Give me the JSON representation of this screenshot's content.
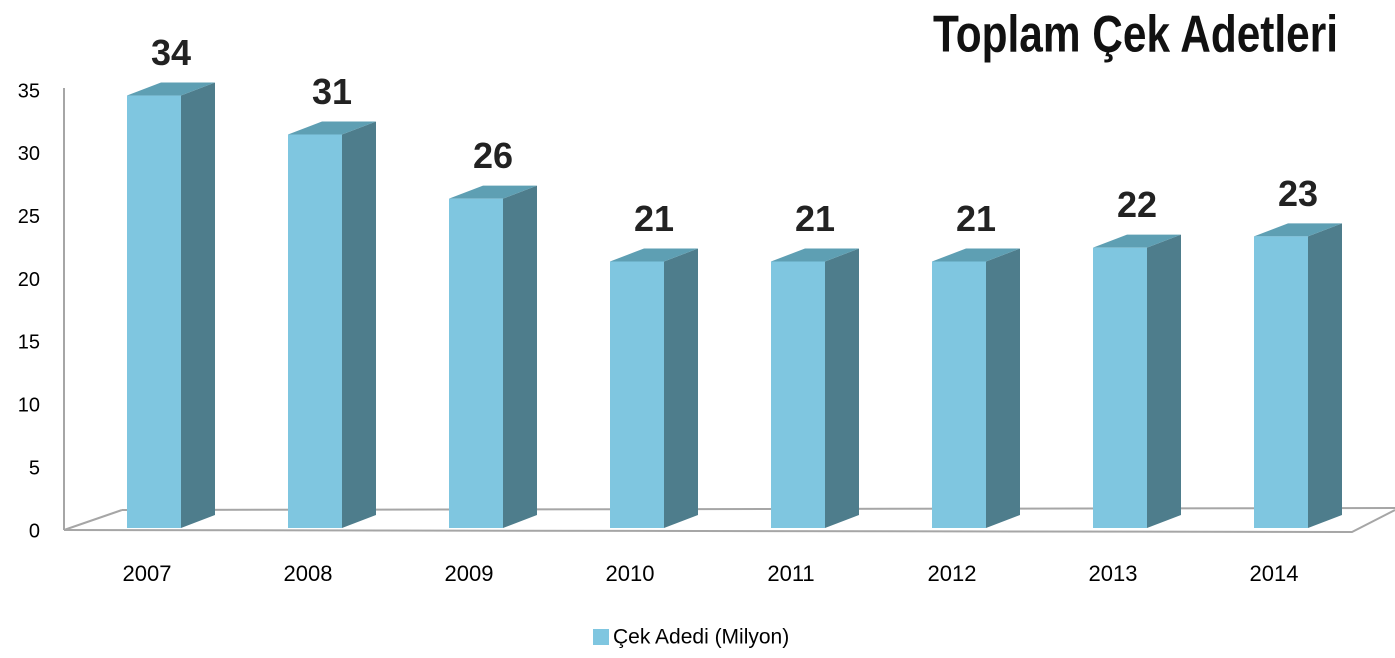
{
  "chart_data": {
    "type": "bar3d",
    "title": "Toplam Çek Adetleri",
    "categories": [
      "2007",
      "2008",
      "2009",
      "2010",
      "2011",
      "2012",
      "2013",
      "2014"
    ],
    "series": [
      {
        "name": "Çek Adedi (Milyon)",
        "color": "#7fc6e0",
        "values": [
          34.4,
          31.3,
          26.2,
          21.2,
          21.2,
          21.2,
          22.3,
          23.2
        ],
        "value_labels": [
          "34",
          "31",
          "26",
          "21",
          "21",
          "21",
          "22",
          "23"
        ]
      }
    ],
    "ylim": [
      0,
      35
    ],
    "yticks": [
      0,
      5,
      10,
      15,
      20,
      25,
      30,
      35
    ],
    "grid": false,
    "legend": "bottom"
  }
}
